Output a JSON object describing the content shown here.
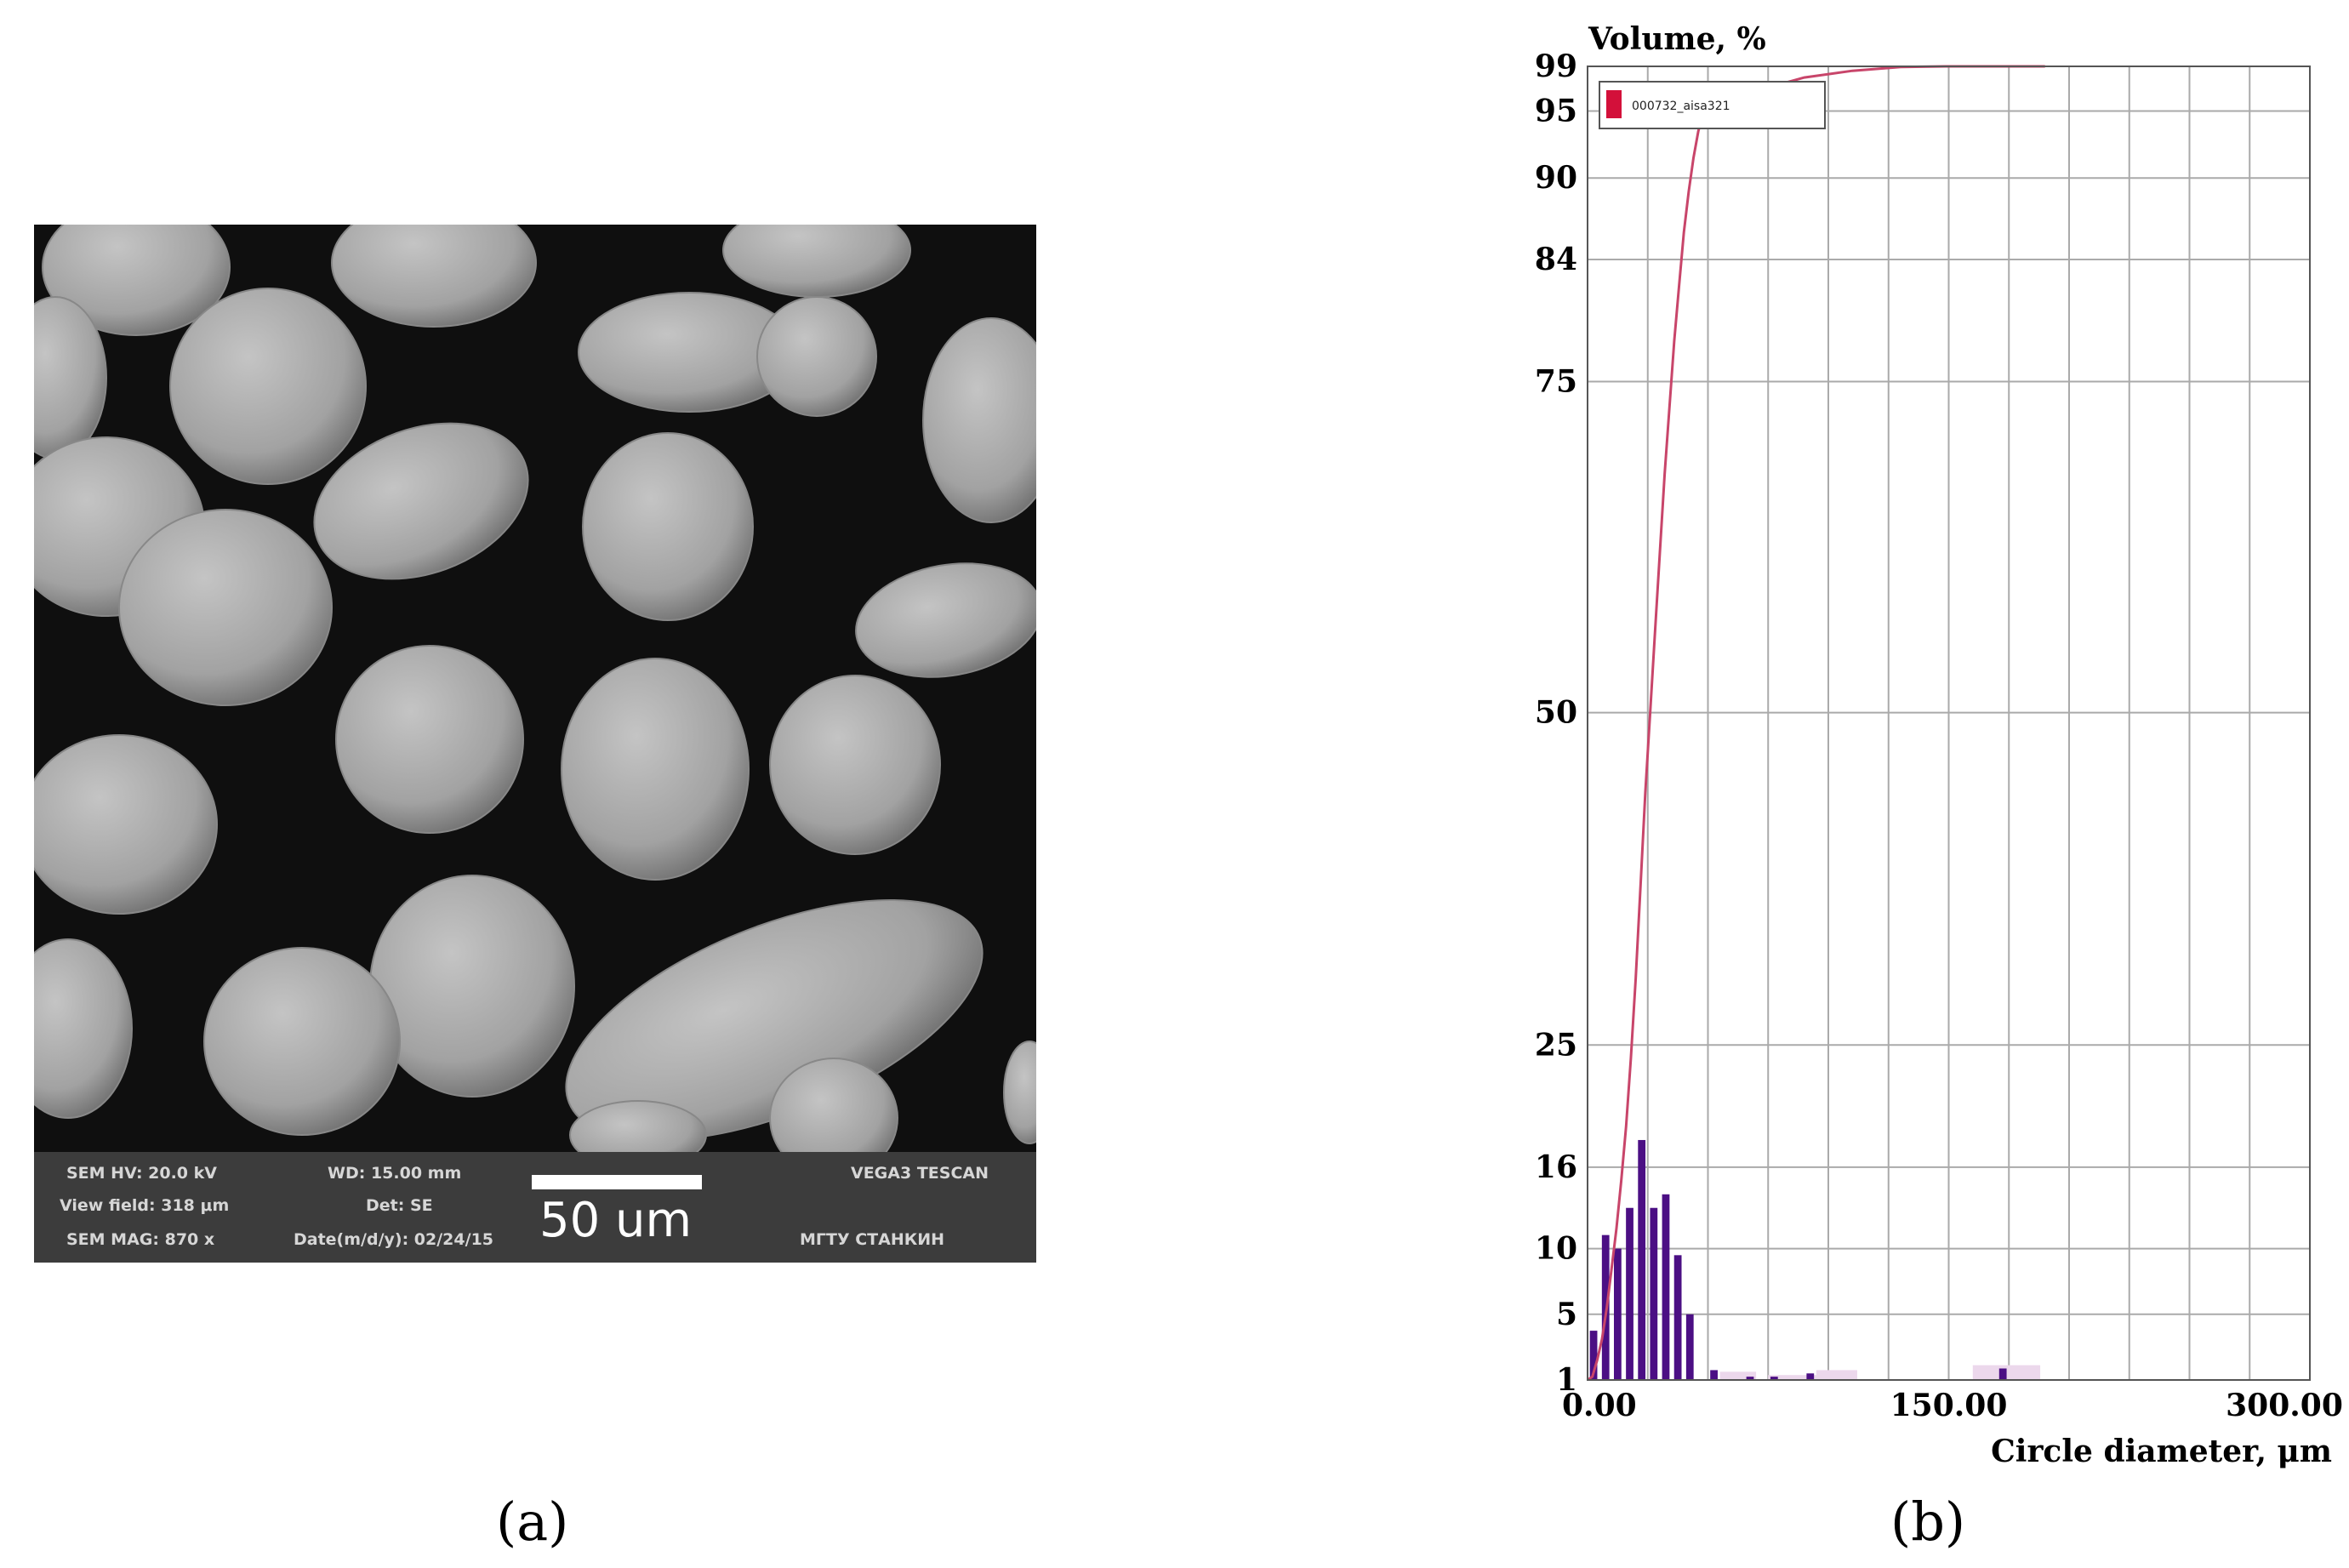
{
  "panel_a": {
    "caption": "(a)",
    "scale_bar_label": "50 um",
    "info_bar": {
      "hv": "SEM HV: 20.0 kV",
      "wd": "WD: 15.00 mm",
      "brand": "VEGA3 TESCAN",
      "view_field": "View field: 318 μm",
      "det": "Det: SE",
      "mag": "SEM MAG: 870 x",
      "date": "Date(m/d/y): 02/24/15",
      "org": "МГТУ СТАНКИН"
    }
  },
  "panel_b": {
    "caption": "(b)"
  },
  "colors": {
    "background": "#ffffff",
    "cumulative_line": "#c8456a",
    "bars_dark": "#4b0f84",
    "bars_light": "#ecd8ec",
    "legend_swatch": "#d3103a",
    "grid": "#aaaaaa",
    "sem_background": "#0e0e0e",
    "sem_particle": "#a6a6a6"
  },
  "chart_data": {
    "type": "bar+line",
    "ylabel": "Volume, %",
    "xlabel": "Circle diameter, μm",
    "xlim": [
      0,
      300
    ],
    "x_ticks": [
      {
        "value": 0,
        "label": "0.00"
      },
      {
        "value": 150,
        "label": "150.00"
      },
      {
        "value": 300,
        "label": "300.00"
      }
    ],
    "y_scale": "probability",
    "y_ticks": [
      1,
      5,
      10,
      16,
      25,
      50,
      75,
      84,
      90,
      95,
      99
    ],
    "grid": true,
    "legend": {
      "entries": [
        "000732_aisa321"
      ],
      "position": "top-left"
    },
    "series": [
      {
        "name": "000732_aisa321",
        "kind": "histogram",
        "bin_width": 5,
        "bins": [
          {
            "x": 2.5,
            "value": 4
          },
          {
            "x": 7.5,
            "value": 11
          },
          {
            "x": 12.5,
            "value": 10
          },
          {
            "x": 17.5,
            "value": 13
          },
          {
            "x": 22.5,
            "value": 18
          },
          {
            "x": 27.5,
            "value": 13
          },
          {
            "x": 32.5,
            "value": 14
          },
          {
            "x": 37.5,
            "value": 9.5
          },
          {
            "x": 42.5,
            "value": 5
          },
          {
            "x": 52.5,
            "value": 1.6
          },
          {
            "x": 67.5,
            "value": 1.2
          },
          {
            "x": 77.5,
            "value": 1.2
          },
          {
            "x": 92.5,
            "value": 1.4
          },
          {
            "x": 172.5,
            "value": 1.7
          }
        ],
        "light_bins": [
          {
            "x0": 55,
            "x1": 70,
            "value": 1.5
          },
          {
            "x0": 75,
            "x1": 100,
            "value": 1.3
          },
          {
            "x0": 95,
            "x1": 112,
            "value": 1.6
          },
          {
            "x0": 160,
            "x1": 188,
            "value": 1.9
          }
        ]
      },
      {
        "name": "000732_aisa321",
        "kind": "cumulative",
        "points": [
          [
            0,
            0.6
          ],
          [
            2,
            1.2
          ],
          [
            4,
            2.2
          ],
          [
            6,
            3.5
          ],
          [
            8,
            5.5
          ],
          [
            10,
            8.5
          ],
          [
            12,
            11.5
          ],
          [
            14,
            15
          ],
          [
            16,
            19
          ],
          [
            18,
            24
          ],
          [
            20,
            30
          ],
          [
            22,
            37
          ],
          [
            24,
            44
          ],
          [
            26,
            50
          ],
          [
            28,
            56
          ],
          [
            30,
            62
          ],
          [
            32,
            68
          ],
          [
            34,
            73
          ],
          [
            36,
            78
          ],
          [
            38,
            82
          ],
          [
            40,
            86
          ],
          [
            42,
            89
          ],
          [
            44,
            91.5
          ],
          [
            46,
            93.5
          ],
          [
            48,
            94.8
          ],
          [
            50,
            95.6
          ],
          [
            52,
            96.1
          ],
          [
            55,
            96.5
          ],
          [
            60,
            96.8
          ],
          [
            70,
            97.0
          ],
          [
            80,
            97.4
          ],
          [
            90,
            98.0
          ],
          [
            110,
            98.6
          ],
          [
            130,
            98.95
          ],
          [
            150,
            99.25
          ],
          [
            170,
            99.4
          ],
          [
            190,
            99.5
          ]
        ]
      }
    ]
  }
}
